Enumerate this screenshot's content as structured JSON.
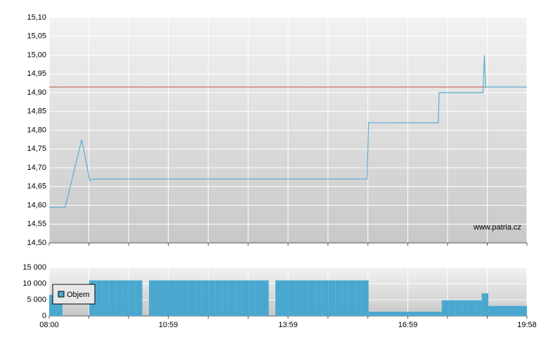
{
  "chart_data": [
    {
      "type": "line",
      "ylim": [
        14.5,
        15.1
      ],
      "yticks": [
        {
          "value": 14.5,
          "label": "14,50"
        },
        {
          "value": 14.55,
          "label": "14,55"
        },
        {
          "value": 14.6,
          "label": "14,60"
        },
        {
          "value": 14.65,
          "label": "14,65"
        },
        {
          "value": 14.7,
          "label": "14,70"
        },
        {
          "value": 14.75,
          "label": "14,75"
        },
        {
          "value": 14.8,
          "label": "14,80"
        },
        {
          "value": 14.85,
          "label": "14,85"
        },
        {
          "value": 14.9,
          "label": "14,90"
        },
        {
          "value": 14.95,
          "label": "14,95"
        },
        {
          "value": 15.0,
          "label": "15,00"
        },
        {
          "value": 15.05,
          "label": "15,05"
        },
        {
          "value": 15.1,
          "label": "15,10"
        }
      ],
      "grid": true,
      "series": [
        {
          "color": "#5aaed0",
          "x": [
            "08:00",
            "08:24",
            "08:49",
            "09:01",
            "09:04",
            "15:58",
            "16:00",
            "17:45",
            "17:46",
            "18:52",
            "18:54",
            "18:56",
            "19:58"
          ],
          "values": [
            14.595,
            14.595,
            14.775,
            14.665,
            14.67,
            14.67,
            14.82,
            14.82,
            14.9,
            14.9,
            15.0,
            14.915,
            14.915
          ]
        }
      ],
      "reference_line": {
        "value": 14.915,
        "color": "#c0504d"
      },
      "annotation": "www.patria.cz"
    },
    {
      "type": "bar",
      "xlim": [
        "08:00",
        "19:58"
      ],
      "xticks": [
        "08:00",
        "10:59",
        "13:59",
        "16:59",
        "19:58"
      ],
      "ylim": [
        0,
        15000
      ],
      "yticks": [
        0,
        {
          "value": 5000,
          "label": "5 000"
        },
        {
          "value": 10000,
          "label": "10 000"
        },
        {
          "value": 15000,
          "label": "15 000"
        }
      ],
      "grid": true,
      "legend": "top-left",
      "series": [
        {
          "name": "Objem",
          "color": "#4aa8d0",
          "x": [
            "08:00",
            "08:10",
            "08:20",
            "08:30",
            "08:40",
            "08:50",
            "09:00",
            "09:10",
            "09:20",
            "09:30",
            "09:40",
            "09:50",
            "10:00",
            "10:10",
            "10:20",
            "10:30",
            "10:40",
            "10:50",
            "11:00",
            "11:10",
            "11:20",
            "11:30",
            "11:40",
            "11:50",
            "12:00",
            "12:10",
            "12:20",
            "12:30",
            "12:40",
            "12:50",
            "13:00",
            "13:10",
            "13:20",
            "13:30",
            "13:40",
            "13:50",
            "14:00",
            "14:10",
            "14:20",
            "14:30",
            "14:40",
            "14:50",
            "15:00",
            "15:10",
            "15:20",
            "15:30",
            "15:40",
            "15:50",
            "16:00",
            "16:10",
            "16:20",
            "16:30",
            "16:40",
            "16:50",
            "17:00",
            "17:10",
            "17:20",
            "17:30",
            "17:40",
            "17:50",
            "18:00",
            "18:10",
            "18:20",
            "18:30",
            "18:40",
            "18:50",
            "19:00",
            "19:10",
            "19:20",
            "19:30",
            "19:40",
            "19:50"
          ],
          "values": [
            6500,
            6500,
            0,
            0,
            0,
            0,
            11000,
            11000,
            11000,
            11000,
            11000,
            11000,
            11000,
            11000,
            0,
            11000,
            11000,
            11000,
            11000,
            11000,
            11000,
            11000,
            11000,
            11000,
            11000,
            11000,
            11000,
            11000,
            11000,
            11000,
            11000,
            11000,
            11000,
            0,
            11000,
            11000,
            11000,
            11000,
            11000,
            11000,
            11000,
            11000,
            11000,
            11000,
            11000,
            11000,
            11000,
            11000,
            1300,
            1300,
            1300,
            1300,
            1300,
            1300,
            1300,
            1300,
            1300,
            1300,
            1300,
            4900,
            4900,
            4900,
            4900,
            4900,
            4900,
            7000,
            3100,
            3100,
            3100,
            3100,
            3100,
            3100
          ]
        }
      ]
    }
  ]
}
